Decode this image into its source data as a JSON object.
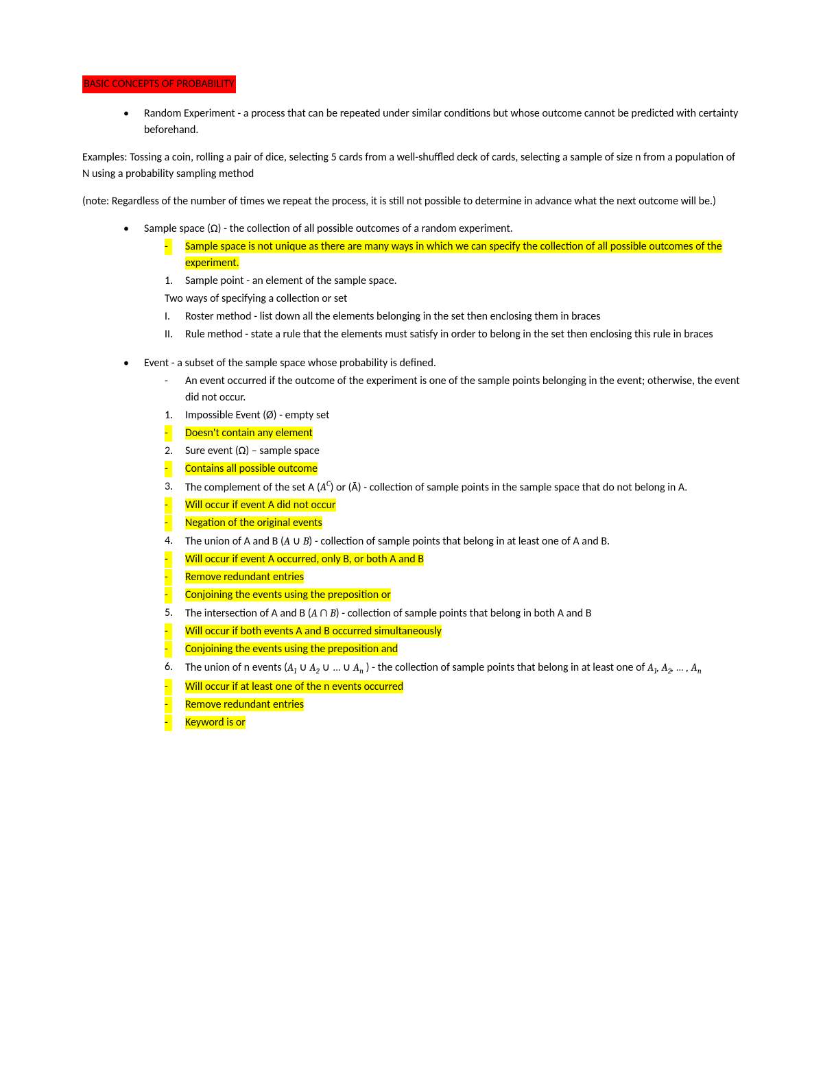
{
  "title": "BASIC CONCEPTS OF PROBABILITY",
  "randomExp": "Random Experiment - a process that can be repeated under similar conditions but whose outcome cannot be predicted with certainty beforehand.",
  "examples": "Examples: Tossing a coin, rolling a pair of dice, selecting 5 cards from a well-shuffled deck of cards, selecting a sample of size n from a population of N using a probability sampling method",
  "note": " (note: Regardless of the number of times we repeat the process, it is still not possible to determine in advance what the next outcome will be.)",
  "sampleSpace": {
    "def": "Sample space (Ω) - the collection of all possible outcomes of a random experiment.",
    "hl": "Sample space is not unique as there are many ways in which we can specify the collection of all possible outcomes of the experiment.",
    "samplePoint": "Sample point - an element of the sample space.",
    "twoWays": "Two ways of specifying a collection or set",
    "roster": "Roster method - list down all the elements belonging in the set then enclosing them in braces",
    "rule": "Rule method - state a rule that the elements must satisfy in order to belong in the set then enclosing this rule in braces"
  },
  "event": {
    "def": "Event - a subset of the sample space whose probability is defined.",
    "occurred": "An event occurred if the outcome of the experiment is one of the sample points belonging in the event; otherwise, the event did not occur.",
    "impossible": "Impossible Event (Ø) - empty set",
    "impossibleHl": "Doesn't contain any element",
    "sure": "Sure event (Ω) – sample space",
    "sureHl": "Contains all possible outcome",
    "complementA": "The complement of the set A (",
    "complementB": ") or (Ā) - collection of sample points in the sample space that do not belong in A.",
    "complementHl1": "Will occur if event A did not occur",
    "complementHl2": "Negation of the original events",
    "unionA": "The union of A and B (",
    "unionB": ") - collection of sample points that belong in at least one of A and B.",
    "unionHl1": "Will occur if event A occurred, only B, or both A and B",
    "unionHl2": "Remove redundant entries",
    "unionHl3": "Conjoining the events using the preposition or",
    "interA": "The intersection of A and B (",
    "interB": ") - collection of sample points that belong in both A and B",
    "interHl1": "Will occur if both events A and B occurred simultaneously",
    "interHl2": "Conjoining the events using the preposition and",
    "unionNA": "The union of n events (",
    "unionNB": " ) - the collection of sample points that belong in at least one of ",
    "unionNHl1": "Will occur if at least one of the n events occurred",
    "unionNHl2": "Remove redundant entries",
    "unionNHl3": "Keyword is or"
  },
  "nums": {
    "n1": "1.",
    "n2": "2.",
    "n3": "3.",
    "n4": "4.",
    "n5": "5.",
    "n6": "6.",
    "rI": "I.",
    "rII": "II."
  },
  "colors": {
    "titleBg": "#ff0000",
    "highlight": "#ffff00",
    "text": "#000000",
    "bg": "#ffffff"
  },
  "typography": {
    "fontFamily": "Calibri",
    "fontSize": 16,
    "lineHeight": 1.5
  }
}
